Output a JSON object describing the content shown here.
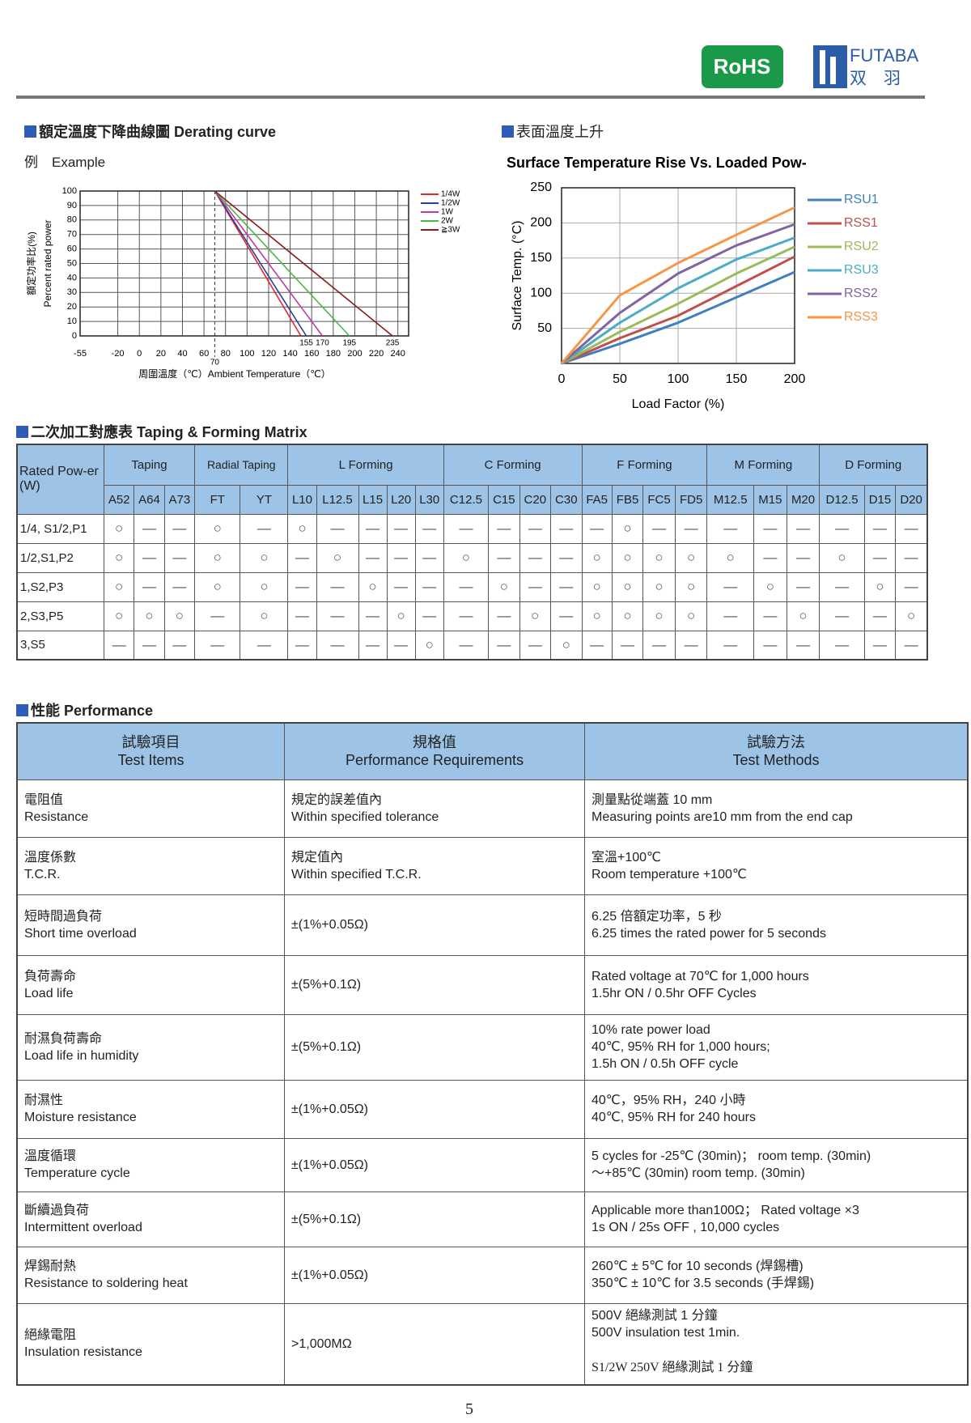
{
  "header": {
    "logo_rohs": "RoHS",
    "logo_brand": "FUTABA",
    "logo_brand_zh": "双　羽"
  },
  "derating": {
    "section_title": "額定溫度下降曲線圖 Derating curve",
    "example": "例　Example"
  },
  "surface": {
    "section_title": "表面溫度上升"
  },
  "chart_data": [
    {
      "type": "line",
      "x_label": "周圍溫度（℃）Ambient Temperature（℃）",
      "y_label": [
        "額定功率比(%)",
        "Percent rated power"
      ],
      "xlim": [
        -55,
        250
      ],
      "xticks": [
        -55,
        -20,
        0,
        20,
        40,
        60,
        80,
        100,
        120,
        140,
        160,
        180,
        200,
        220,
        240
      ],
      "ylim": [
        0,
        100
      ],
      "yticks": [
        0,
        10,
        20,
        30,
        40,
        50,
        60,
        70,
        80,
        90,
        100
      ],
      "grid": true,
      "marked_x": [
        70,
        155,
        170,
        195,
        235
      ],
      "series": [
        {
          "name": "1/4W",
          "color": "#e5262d",
          "x": [
            70,
            150
          ],
          "values": [
            100,
            0
          ]
        },
        {
          "name": "1/2W",
          "color": "#2d3e9a",
          "x": [
            70,
            155
          ],
          "values": [
            100,
            0
          ]
        },
        {
          "name": "1W",
          "color": "#c23aa5",
          "x": [
            70,
            170
          ],
          "values": [
            100,
            0
          ]
        },
        {
          "name": "2W",
          "color": "#4cb849",
          "x": [
            70,
            195
          ],
          "values": [
            100,
            0
          ]
        },
        {
          "name": "≧3W",
          "color": "#8b1a1a",
          "x": [
            70,
            235
          ],
          "values": [
            100,
            0
          ]
        }
      ]
    },
    {
      "type": "line",
      "title": "Surface Temperature Rise  Vs.  Loaded Pow-",
      "x_label": "Load Factor (%)",
      "y_label": "Surface Temp. (°C)",
      "x": [
        0,
        50,
        100,
        150,
        200
      ],
      "xlim": [
        0,
        200
      ],
      "xticks": [
        0,
        50,
        100,
        150,
        200
      ],
      "ylim": [
        0,
        250
      ],
      "yticks": [
        50,
        100,
        150,
        200,
        250
      ],
      "grid": true,
      "series": [
        {
          "name": "RSU1",
          "color": "#3f7fc0",
          "values": [
            0,
            28,
            58,
            94,
            130
          ]
        },
        {
          "name": "RSS1",
          "color": "#c0504d",
          "values": [
            0,
            36,
            68,
            110,
            152
          ]
        },
        {
          "name": "RSU2",
          "color": "#9bbb59",
          "values": [
            0,
            45,
            85,
            128,
            166
          ]
        },
        {
          "name": "RSU3",
          "color": "#4bacc6",
          "values": [
            0,
            58,
            107,
            148,
            179
          ]
        },
        {
          "name": "RSS2",
          "color": "#8064a2",
          "values": [
            0,
            72,
            128,
            168,
            198
          ]
        },
        {
          "name": "RSS3",
          "color": "#f79646",
          "values": [
            0,
            97,
            143,
            183,
            222
          ]
        }
      ]
    }
  ],
  "taping": {
    "section_title": "二次加工對應表 Taping & Forming Matrix",
    "row_header": "Rated Pow-er (W)",
    "groups": [
      {
        "name": "Taping",
        "columns": [
          "A52",
          "A64",
          "A73"
        ]
      },
      {
        "name": "Radial Taping",
        "columns": [
          "FT",
          "YT"
        ]
      },
      {
        "name": "L Forming",
        "columns": [
          "L10",
          "L12.5",
          "L15",
          "L20",
          "L30"
        ]
      },
      {
        "name": "C Forming",
        "columns": [
          "C12.5",
          "C15",
          "C20",
          "C30"
        ]
      },
      {
        "name": "F Forming",
        "columns": [
          "FA5",
          "FB5",
          "FC5",
          "FD5"
        ]
      },
      {
        "name": "M Forming",
        "columns": [
          "M12.5",
          "M15",
          "M20"
        ]
      },
      {
        "name": "D Forming",
        "columns": [
          "D12.5",
          "D15",
          "D20"
        ]
      }
    ],
    "rows": [
      {
        "label": "1/4, S1/2,P1",
        "cells": [
          "○",
          "—",
          "—",
          "○",
          "—",
          "○",
          "—",
          "—",
          "—",
          "—",
          "—",
          "—",
          "—",
          "—",
          "—",
          "○",
          "—",
          "—",
          "—",
          "—",
          "—",
          "—",
          "—",
          "—"
        ]
      },
      {
        "label": "1/2,S1,P2",
        "cells": [
          "○",
          "—",
          "—",
          "○",
          "○",
          "—",
          "○",
          "—",
          "—",
          "—",
          "○",
          "—",
          "—",
          "—",
          "○",
          "○",
          "○",
          "○",
          "○",
          "—",
          "—",
          "○",
          "—",
          "—"
        ]
      },
      {
        "label": "1,S2,P3",
        "cells": [
          "○",
          "—",
          "—",
          "○",
          "○",
          "—",
          "—",
          "○",
          "—",
          "—",
          "—",
          "○",
          "—",
          "—",
          "○",
          "○",
          "○",
          "○",
          "—",
          "○",
          "—",
          "—",
          "○",
          "—"
        ]
      },
      {
        "label": "2,S3,P5",
        "cells": [
          "○",
          "○",
          "○",
          "—",
          "○",
          "—",
          "—",
          "—",
          "○",
          "—",
          "—",
          "—",
          "○",
          "—",
          "○",
          "○",
          "○",
          "○",
          "—",
          "—",
          "○",
          "—",
          "—",
          "○"
        ]
      },
      {
        "label": "3,S5",
        "cells": [
          "—",
          "—",
          "—",
          "—",
          "—",
          "—",
          "—",
          "—",
          "—",
          "○",
          "—",
          "—",
          "—",
          "○",
          "—",
          "—",
          "—",
          "—",
          "—",
          "—",
          "—",
          "—",
          "—",
          "—"
        ]
      }
    ]
  },
  "performance": {
    "section_title": "性能 Performance",
    "headers": [
      [
        "試驗項目",
        "Test Items"
      ],
      [
        "規格值",
        "Performance Requirements"
      ],
      [
        "試驗方法",
        "Test Methods"
      ]
    ],
    "rows": [
      [
        [
          "電阻值",
          "Resistance"
        ],
        [
          "規定的誤差值內",
          "Within specified tolerance"
        ],
        [
          "測量點從端蓋 10 mm",
          "Measuring points are10 mm from the end cap"
        ]
      ],
      [
        [
          "溫度係數",
          "T.C.R."
        ],
        [
          "規定值內",
          "Within specified T.C.R."
        ],
        [
          "室溫+100℃",
          "Room temperature +100℃"
        ]
      ],
      [
        [
          "短時間過負荷",
          "Short time overload"
        ],
        [
          "±(1%+0.05Ω)"
        ],
        [
          "6.25 倍額定功率，5 秒",
          "6.25 times the rated power for 5 seconds"
        ]
      ],
      [
        [
          "負荷壽命",
          "Load life"
        ],
        [
          "±(5%+0.1Ω)"
        ],
        [
          "Rated voltage at 70℃ for 1,000 hours",
          "1.5hr ON / 0.5hr OFF Cycles"
        ]
      ],
      [
        [
          "耐濕負荷壽命",
          "Load life in humidity"
        ],
        [
          "±(5%+0.1Ω)"
        ],
        [
          "10% rate power load",
          "40℃, 95% RH for 1,000 hours;",
          "1.5h ON / 0.5h OFF cycle"
        ]
      ],
      [
        [
          "耐濕性",
          "Moisture resistance"
        ],
        [
          "±(1%+0.05Ω)"
        ],
        [
          "40℃，95% RH，240 小時",
          "40℃, 95% RH for 240 hours"
        ]
      ],
      [
        [
          "溫度循環",
          "Temperature cycle"
        ],
        [
          "±(1%+0.05Ω)"
        ],
        [
          "5 cycles for -25℃ (30min)； room temp. (30min)",
          "～+85℃ (30min) room temp. (30min)"
        ]
      ],
      [
        [
          "斷續過負荷",
          "Intermittent overload"
        ],
        [
          "±(5%+0.1Ω)"
        ],
        [
          "Applicable more than100Ω； Rated voltage ×3",
          "1s ON / 25s OFF , 10,000 cycles"
        ]
      ],
      [
        [
          "焊錫耐熱",
          "Resistance to soldering heat"
        ],
        [
          "±(1%+0.05Ω)"
        ],
        [
          "260℃ ± 5℃ for 10 seconds (焊錫槽)",
          "350℃ ± 10℃ for 3.5 seconds (手焊錫)"
        ]
      ],
      [
        [
          "絕緣電阻",
          "Insulation resistance"
        ],
        [
          ">1,000MΩ"
        ],
        [
          "500V 絕緣測試 1 分鐘",
          "500V insulation test 1min.",
          "S1/2W  250V 絕緣測試 1 分鐘"
        ]
      ]
    ]
  },
  "page_number": "5"
}
